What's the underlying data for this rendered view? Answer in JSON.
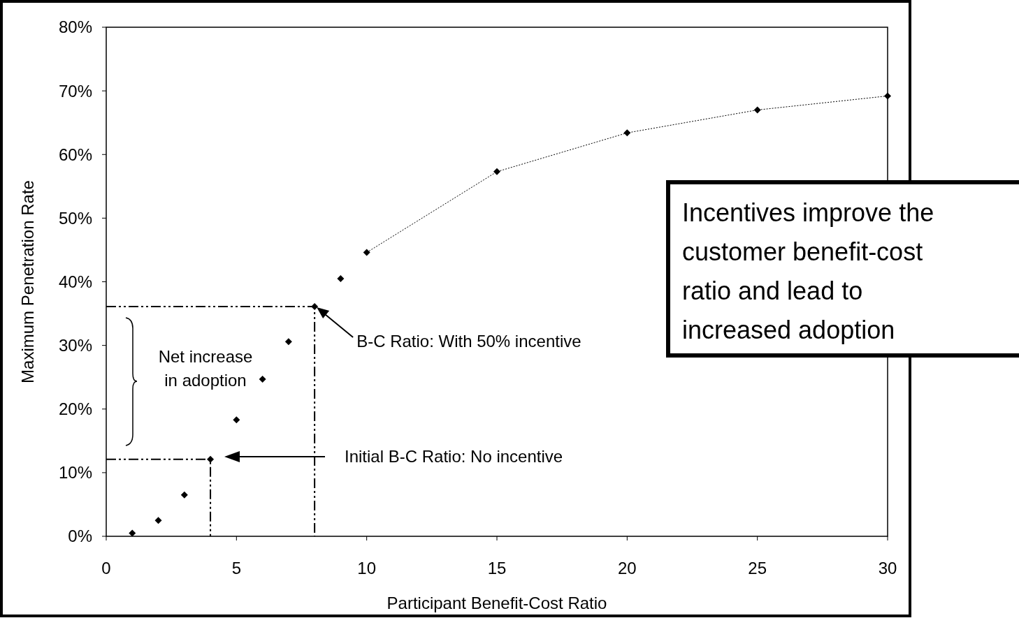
{
  "chart_data": {
    "type": "scatter",
    "xlabel": "Participant Benefit-Cost Ratio",
    "ylabel": "Maximum Penetration Rate",
    "xlim": [
      0,
      30
    ],
    "xticks": [
      0,
      5,
      10,
      15,
      20,
      25,
      30
    ],
    "ylim": [
      0,
      80
    ],
    "yticks": [
      {
        "value": 0,
        "label": "0%"
      },
      {
        "value": 10,
        "label": "10%"
      },
      {
        "value": 20,
        "label": "20%"
      },
      {
        "value": 30,
        "label": "30%"
      },
      {
        "value": 40,
        "label": "40%"
      },
      {
        "value": 50,
        "label": "50%"
      },
      {
        "value": 60,
        "label": "60%"
      },
      {
        "value": 70,
        "label": "70%"
      },
      {
        "value": 80,
        "label": "80%"
      }
    ],
    "grid": false,
    "marker": "diamond",
    "series": [
      {
        "color": "#000000",
        "x": [
          1,
          2,
          3,
          4,
          5,
          6,
          7,
          8,
          9
        ],
        "values": [
          0.5,
          2.5,
          6.5,
          12.1,
          18.3,
          24.7,
          30.6,
          36.1,
          40.5
        ]
      },
      {
        "type": "line",
        "color": "#000000",
        "line_style": "dotted",
        "x": [
          10,
          15,
          20,
          25,
          30
        ],
        "values": [
          44.6,
          57.3,
          63.4,
          67.0,
          69.2
        ]
      },
      {
        "type": "line",
        "color": "#000000",
        "line_style": "dashed",
        "marker": "none",
        "x": [
          0,
          8,
          8
        ],
        "values": [
          36.1,
          36.1,
          0
        ]
      },
      {
        "type": "line",
        "color": "#000000",
        "line_style": "dashed",
        "marker": "none",
        "x": [
          0,
          4,
          4
        ],
        "values": [
          12.1,
          12.1,
          0
        ]
      }
    ],
    "annotations": [
      {
        "text": "B-C Ratio: With 50% incentive",
        "x": 8,
        "y": 36.1
      },
      "Initial B-C Ratio: No incentive",
      "Net increase in adoption",
      "Incentives improve the customer benefit-cost ratio and lead to increased adoption"
    ]
  }
}
